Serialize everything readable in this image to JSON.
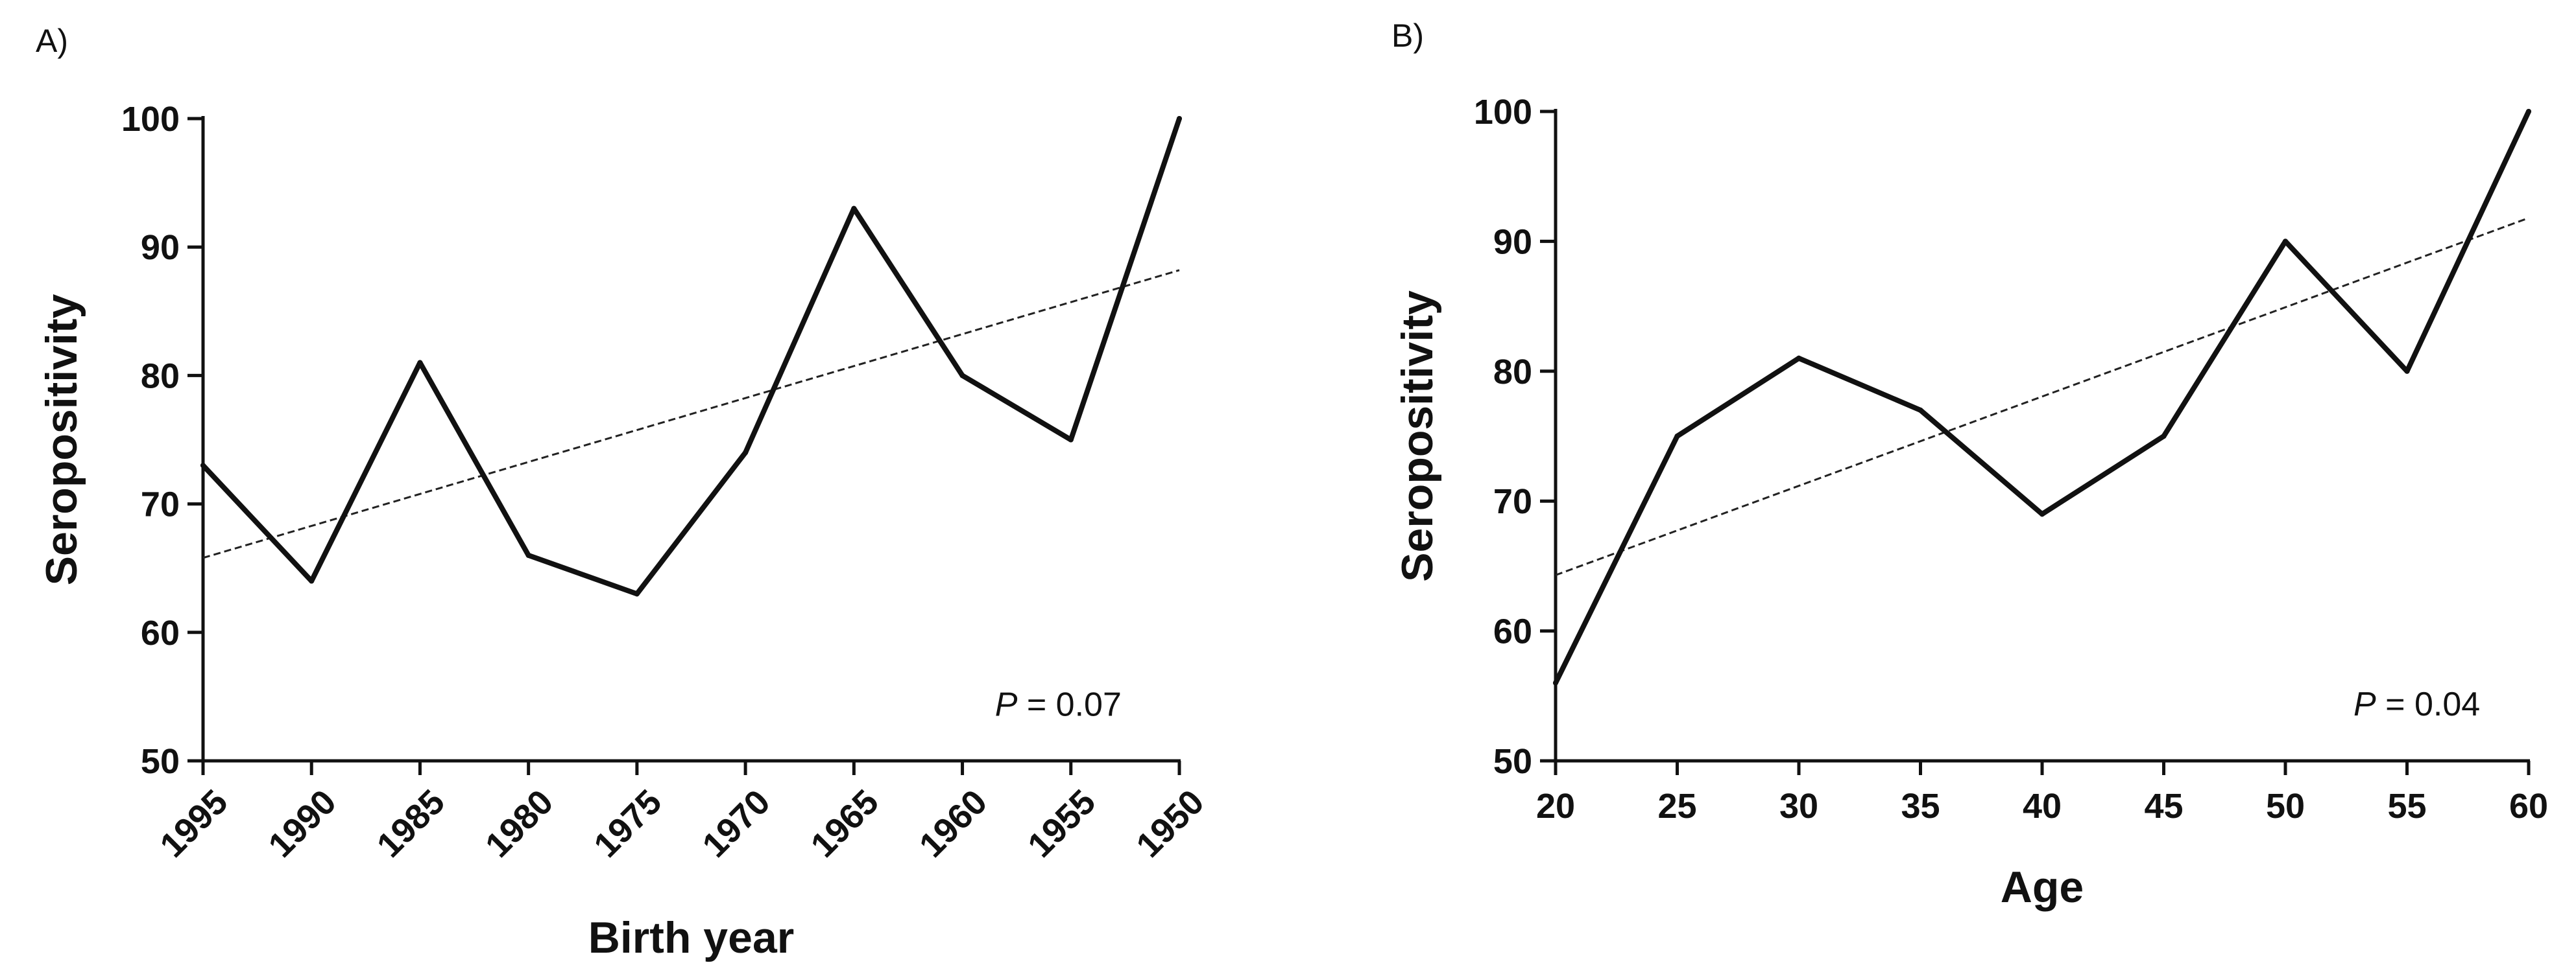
{
  "chart_data": [
    {
      "panel_label": "A)",
      "type": "line",
      "xlabel": "Birth year",
      "ylabel": "Seropositivity",
      "x_reversed": true,
      "xlim": [
        1995,
        1950
      ],
      "ylim": [
        50,
        100
      ],
      "x_ticks": [
        1995,
        1990,
        1985,
        1980,
        1975,
        1970,
        1965,
        1960,
        1955,
        1950
      ],
      "x_tick_labels": [
        "1995",
        "1990",
        "1985",
        "1980",
        "1975",
        "1970",
        "1965",
        "1960",
        "1955",
        "1950"
      ],
      "x_tick_rotation": "-45deg",
      "y_ticks": [
        50,
        60,
        70,
        80,
        90,
        100
      ],
      "y_tick_labels": [
        "50",
        "60",
        "70",
        "80",
        "90",
        "100"
      ],
      "grid": false,
      "series": [
        {
          "name": "Seropositivity",
          "style": "solid",
          "x": [
            1995,
            1990,
            1985,
            1980,
            1975,
            1970,
            1965,
            1960,
            1955,
            1950
          ],
          "y": [
            73,
            64,
            81,
            66,
            63,
            74,
            93,
            80,
            75,
            100
          ]
        }
      ],
      "trend_line": {
        "style": "dashed",
        "x": [
          1995,
          1950
        ],
        "y": [
          65.8,
          88.2
        ]
      },
      "annotation": {
        "italic": "P",
        "text": " = 0.07",
        "x": 1958.5,
        "y": 53.5
      }
    },
    {
      "panel_label": "B)",
      "type": "line",
      "xlabel": "Age",
      "ylabel": "Seropositivity",
      "x_reversed": false,
      "xlim": [
        20,
        60
      ],
      "ylim": [
        50,
        100
      ],
      "x_ticks": [
        20,
        25,
        30,
        35,
        40,
        45,
        50,
        55,
        60
      ],
      "x_tick_labels": [
        "20",
        "25",
        "30",
        "35",
        "40",
        "45",
        "50",
        "55",
        "60"
      ],
      "x_tick_rotation": "0deg",
      "y_ticks": [
        50,
        60,
        70,
        80,
        90,
        100
      ],
      "y_tick_labels": [
        "50",
        "60",
        "70",
        "80",
        "90",
        "100"
      ],
      "grid": false,
      "series": [
        {
          "name": "Seropositivity",
          "style": "solid",
          "x": [
            20,
            25,
            30,
            35,
            40,
            45,
            50,
            55,
            60
          ],
          "y": [
            56,
            75,
            81,
            77,
            69,
            75,
            90,
            80,
            100
          ]
        }
      ],
      "trend_line": {
        "style": "dashed",
        "x": [
          20,
          60
        ],
        "y": [
          64.3,
          91.8
        ]
      },
      "annotation": {
        "italic": "P",
        "text": " = 0.04",
        "x": 52.8,
        "y": 53.5
      }
    }
  ]
}
